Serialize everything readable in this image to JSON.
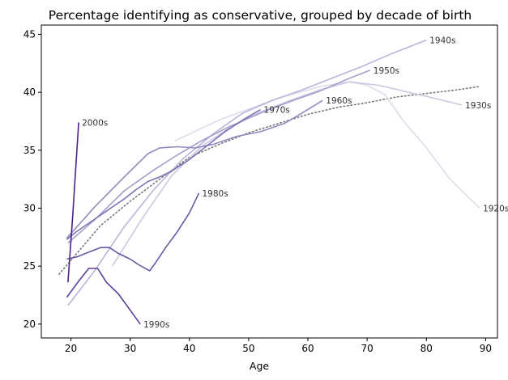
{
  "chart_data": {
    "type": "line",
    "title": "Percentage identifying as conservative, grouped by decade of birth",
    "xlabel": "Age",
    "ylabel": "",
    "xlim": [
      15,
      92
    ],
    "ylim": [
      18.8,
      45.8
    ],
    "xticks": [
      20,
      30,
      40,
      50,
      60,
      70,
      80,
      90
    ],
    "yticks": [
      20,
      25,
      30,
      35,
      40,
      45
    ],
    "grid": false,
    "series": [
      {
        "name": "1920s",
        "color": "#dcdcec",
        "x": [
          37.5,
          45,
          55,
          62,
          67,
          70,
          73,
          76,
          80,
          84,
          89
        ],
        "y": [
          35.8,
          37.6,
          39.5,
          40.5,
          40.9,
          40.6,
          39.8,
          37.6,
          35.2,
          32.5,
          30.0
        ]
      },
      {
        "name": "1930s",
        "color": "#cac9e2",
        "x": [
          27,
          32,
          37,
          42,
          47,
          52,
          57,
          62,
          67,
          72,
          77,
          82,
          86
        ],
        "y": [
          25.0,
          29.1,
          32.8,
          35.3,
          37.0,
          38.3,
          39.3,
          40.2,
          40.9,
          40.6,
          40.0,
          39.4,
          38.9
        ]
      },
      {
        "name": "1940s",
        "color": "#b9b5da",
        "x": [
          19.5,
          24,
          29,
          34,
          39,
          44,
          49,
          54,
          59,
          64,
          69,
          74,
          80
        ],
        "y": [
          21.6,
          24.6,
          28.4,
          31.6,
          34.3,
          36.4,
          38.2,
          39.3,
          40.2,
          41.2,
          42.2,
          43.3,
          44.5
        ]
      },
      {
        "name": "1950s",
        "color": "#a39fcb",
        "x": [
          19.5,
          24,
          29,
          34,
          38,
          42,
          47,
          52,
          57,
          62,
          67,
          70.5
        ],
        "y": [
          27.0,
          29.0,
          31.5,
          33.3,
          34.6,
          35.8,
          37.1,
          38.2,
          39.2,
          40.1,
          41.2,
          41.9
        ]
      },
      {
        "name": "1960s",
        "color": "#8f8abf",
        "x": [
          19.3,
          24,
          29,
          33,
          35,
          38,
          41,
          44,
          48,
          52,
          56,
          59,
          62.5
        ],
        "y": [
          27.4,
          30.1,
          32.7,
          34.7,
          35.2,
          35.3,
          35.2,
          35.5,
          36.2,
          36.6,
          37.3,
          38.2,
          39.3
        ]
      },
      {
        "name": "1970s",
        "color": "#7b72b3",
        "x": [
          19.3,
          21,
          23,
          25,
          27,
          29,
          31,
          33,
          35,
          37,
          40,
          43,
          46,
          49,
          52
        ],
        "y": [
          27.3,
          28.0,
          28.7,
          29.4,
          30.1,
          30.8,
          31.6,
          32.3,
          32.7,
          33.2,
          34.2,
          35.4,
          36.6,
          37.6,
          38.5
        ]
      },
      {
        "name": "1980s",
        "color": "#6a57a5",
        "x": [
          19.3,
          21,
          23,
          25,
          26.5,
          28,
          30,
          31.5,
          33.3,
          34.3,
          36,
          38,
          40,
          41.6
        ],
        "y": [
          25.6,
          25.8,
          26.2,
          26.6,
          26.6,
          26.1,
          25.6,
          25.1,
          24.6,
          25.3,
          26.6,
          28.0,
          29.6,
          31.3
        ]
      },
      {
        "name": "1990s",
        "color": "#5c3f99",
        "x": [
          19.3,
          21,
          23,
          24.5,
          26,
          28,
          30,
          31.7
        ],
        "y": [
          22.3,
          23.5,
          24.8,
          24.8,
          23.6,
          22.6,
          21.2,
          20.0
        ]
      },
      {
        "name": "2000s",
        "color": "#4d2288",
        "x": [
          19.5,
          20.3,
          21.3
        ],
        "y": [
          23.6,
          29.4,
          37.4
        ]
      }
    ],
    "trend": {
      "color": "#777777",
      "style": "dotted",
      "x": [
        18,
        25,
        30,
        35,
        40,
        45,
        50,
        55,
        60,
        65,
        70,
        75,
        80,
        85,
        89
      ],
      "y": [
        24.3,
        28.5,
        30.6,
        32.5,
        34.4,
        35.5,
        36.5,
        37.3,
        38.1,
        38.7,
        39.1,
        39.6,
        39.9,
        40.2,
        40.5
      ]
    }
  }
}
